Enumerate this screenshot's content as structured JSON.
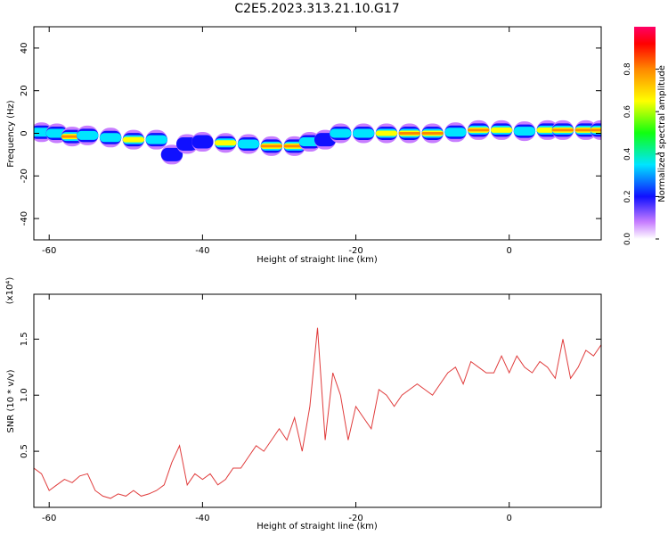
{
  "title": "C2E5.2023.313.21.10.G17",
  "chart_data": [
    {
      "type": "heatmap",
      "xlabel": "Height of straight line (km)",
      "ylabel": "Frequency (Hz)",
      "xlim": [
        -62,
        12
      ],
      "ylim": [
        -50,
        50
      ],
      "xticks": [
        -60,
        -40,
        -20,
        0
      ],
      "yticks": [
        40,
        20,
        0,
        -20,
        -40
      ],
      "colorbar": {
        "label": "Normalized spectral amplitude",
        "range": [
          0,
          1
        ],
        "ticks": [
          "0.0",
          "0.2",
          "0.4",
          "0.6",
          "0.8"
        ]
      },
      "ridge_points": [
        {
          "x": -61,
          "f": 0.5,
          "a": 0.55
        },
        {
          "x": -59,
          "f": 0.0,
          "a": 0.45
        },
        {
          "x": -57,
          "f": -1.5,
          "a": 0.9
        },
        {
          "x": -55,
          "f": -1.0,
          "a": 0.5
        },
        {
          "x": -52,
          "f": -2.0,
          "a": 0.45
        },
        {
          "x": -49,
          "f": -3.0,
          "a": 0.8
        },
        {
          "x": -46,
          "f": -3.0,
          "a": 0.5
        },
        {
          "x": -44,
          "f": -10.0,
          "a": 0.35
        },
        {
          "x": -42,
          "f": -5.0,
          "a": 0.3
        },
        {
          "x": -40,
          "f": -4.0,
          "a": 0.3
        },
        {
          "x": -37,
          "f": -4.5,
          "a": 0.75
        },
        {
          "x": -34,
          "f": -5.0,
          "a": 0.45
        },
        {
          "x": -31,
          "f": -6.0,
          "a": 0.95
        },
        {
          "x": -28,
          "f": -6.0,
          "a": 0.85
        },
        {
          "x": -26,
          "f": -4.0,
          "a": 0.45
        },
        {
          "x": -24,
          "f": -3.0,
          "a": 0.4
        },
        {
          "x": -22,
          "f": 0.0,
          "a": 0.55
        },
        {
          "x": -19,
          "f": 0.0,
          "a": 0.55
        },
        {
          "x": -16,
          "f": 0.0,
          "a": 0.8
        },
        {
          "x": -13,
          "f": 0.0,
          "a": 0.9
        },
        {
          "x": -10,
          "f": 0.0,
          "a": 0.98
        },
        {
          "x": -7,
          "f": 0.5,
          "a": 0.6
        },
        {
          "x": -4,
          "f": 1.5,
          "a": 0.85
        },
        {
          "x": -1,
          "f": 1.5,
          "a": 0.8
        },
        {
          "x": 2,
          "f": 1.0,
          "a": 0.6
        },
        {
          "x": 5,
          "f": 1.5,
          "a": 0.7
        },
        {
          "x": 7,
          "f": 1.5,
          "a": 0.9
        },
        {
          "x": 10,
          "f": 1.5,
          "a": 0.9
        },
        {
          "x": 12,
          "f": 1.5,
          "a": 0.85
        }
      ]
    },
    {
      "type": "line",
      "xlabel": "Height of straight line (km)",
      "ylabel": "SNR (10 * v/v)",
      "y_multiplier_label": "(x10⁴)",
      "xlim": [
        -62,
        12
      ],
      "ylim": [
        0,
        1.9
      ],
      "xticks": [
        -60,
        -40,
        -20,
        0
      ],
      "yticks": [
        "0.5",
        "1.0",
        "1.5"
      ],
      "series": [
        {
          "color": "#e03c3c",
          "x": [
            -62,
            -61,
            -60,
            -59,
            -58,
            -57,
            -56,
            -55,
            -54,
            -53,
            -52,
            -51,
            -50,
            -49,
            -48,
            -47,
            -46,
            -45,
            -44,
            -43,
            -42,
            -41,
            -40,
            -39,
            -38,
            -37,
            -36,
            -35,
            -34,
            -33,
            -32,
            -31,
            -30,
            -29,
            -28,
            -27,
            -26,
            -25,
            -24,
            -23,
            -22,
            -21,
            -20,
            -19,
            -18,
            -17,
            -16,
            -15,
            -14,
            -13,
            -12,
            -11,
            -10,
            -9,
            -8,
            -7,
            -6,
            -5,
            -4,
            -3,
            -2,
            -1,
            0,
            1,
            2,
            3,
            4,
            5,
            6,
            7,
            8,
            9,
            10,
            11,
            12
          ],
          "values": [
            0.35,
            0.3,
            0.15,
            0.2,
            0.25,
            0.22,
            0.28,
            0.3,
            0.15,
            0.1,
            0.08,
            0.12,
            0.1,
            0.15,
            0.1,
            0.12,
            0.15,
            0.2,
            0.4,
            0.55,
            0.2,
            0.3,
            0.25,
            0.3,
            0.2,
            0.25,
            0.35,
            0.35,
            0.45,
            0.55,
            0.5,
            0.6,
            0.7,
            0.6,
            0.8,
            0.5,
            0.9,
            1.6,
            0.6,
            1.2,
            1.0,
            0.6,
            0.9,
            0.8,
            0.7,
            1.05,
            1.0,
            0.9,
            1.0,
            1.05,
            1.1,
            1.05,
            1.0,
            1.1,
            1.2,
            1.25,
            1.1,
            1.3,
            1.25,
            1.2,
            1.2,
            1.35,
            1.2,
            1.35,
            1.25,
            1.2,
            1.3,
            1.25,
            1.15,
            1.5,
            1.15,
            1.25,
            1.4,
            1.35,
            1.45
          ]
        }
      ]
    }
  ]
}
